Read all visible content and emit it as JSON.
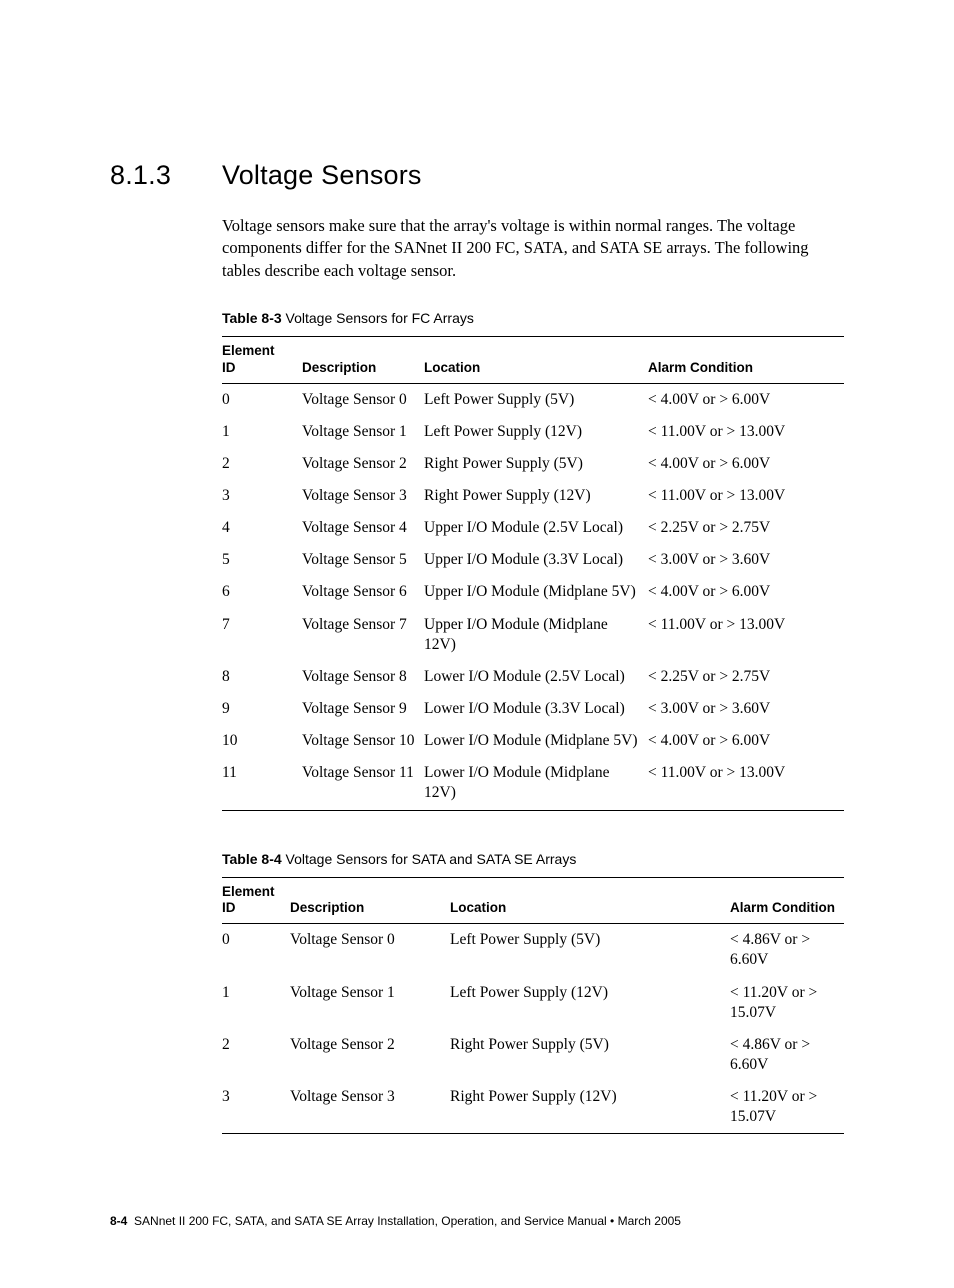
{
  "heading": {
    "number": "8.1.3",
    "title": "Voltage Sensors"
  },
  "intro_paragraph": "Voltage sensors make sure that the array's voltage is within normal ranges. The voltage components differ for the SANnet II 200 FC, SATA, and SATA SE arrays. The following tables describe each voltage sensor.",
  "table1": {
    "caption_label": "Table 8-3",
    "caption_text": "Voltage Sensors for FC Arrays",
    "columns": [
      "Element ID",
      "Description",
      "Location",
      "Alarm Condition"
    ],
    "col1_line1": "Element",
    "col1_line2": "ID",
    "rows": [
      [
        "0",
        "Voltage Sensor 0",
        "Left Power Supply (5V)",
        "< 4.00V or > 6.00V"
      ],
      [
        "1",
        "Voltage Sensor 1",
        "Left Power Supply (12V)",
        "< 11.00V or > 13.00V"
      ],
      [
        "2",
        "Voltage Sensor 2",
        "Right Power Supply (5V)",
        "< 4.00V or > 6.00V"
      ],
      [
        "3",
        "Voltage Sensor 3",
        "Right Power Supply (12V)",
        "< 11.00V or > 13.00V"
      ],
      [
        "4",
        "Voltage Sensor 4",
        "Upper I/O Module (2.5V Local)",
        "< 2.25V or > 2.75V"
      ],
      [
        "5",
        "Voltage Sensor 5",
        "Upper I/O Module (3.3V Local)",
        "< 3.00V or > 3.60V"
      ],
      [
        "6",
        "Voltage Sensor 6",
        "Upper I/O Module (Midplane 5V)",
        "< 4.00V or > 6.00V"
      ],
      [
        "7",
        "Voltage Sensor 7",
        "Upper I/O Module (Midplane 12V)",
        "< 11.00V or > 13.00V"
      ],
      [
        "8",
        "Voltage Sensor 8",
        "Lower I/O Module (2.5V Local)",
        "< 2.25V or > 2.75V"
      ],
      [
        "9",
        "Voltage Sensor 9",
        "Lower I/O Module (3.3V Local)",
        "< 3.00V or > 3.60V"
      ],
      [
        "10",
        "Voltage Sensor 10",
        "Lower I/O Module (Midplane 5V)",
        "< 4.00V or > 6.00V"
      ],
      [
        "11",
        "Voltage Sensor 11",
        "Lower I/O Module (Midplane 12V)",
        "< 11.00V or > 13.00V"
      ]
    ]
  },
  "table2": {
    "caption_label": "Table 8-4",
    "caption_text": "Voltage Sensors for SATA and SATA SE Arrays",
    "columns": [
      "Element ID",
      "Description",
      "Location",
      "Alarm Condition"
    ],
    "col1_line1": "Element",
    "col1_line2": "ID",
    "rows": [
      [
        "0",
        "Voltage Sensor 0",
        "Left Power Supply (5V)",
        "< 4.86V or > 6.60V"
      ],
      [
        "1",
        "Voltage Sensor 1",
        "Left Power Supply (12V)",
        "< 11.20V or > 15.07V"
      ],
      [
        "2",
        "Voltage Sensor 2",
        "Right Power Supply (5V)",
        "< 4.86V or > 6.60V"
      ],
      [
        "3",
        "Voltage Sensor 3",
        "Right Power Supply (12V)",
        "< 11.20V or > 15.07V"
      ]
    ]
  },
  "footer": {
    "page_number": "8-4",
    "manual_title": "SANnet II 200 FC, SATA, and SATA SE Array Installation, Operation, and Service Manual",
    "separator": "•",
    "date": "March 2005"
  }
}
